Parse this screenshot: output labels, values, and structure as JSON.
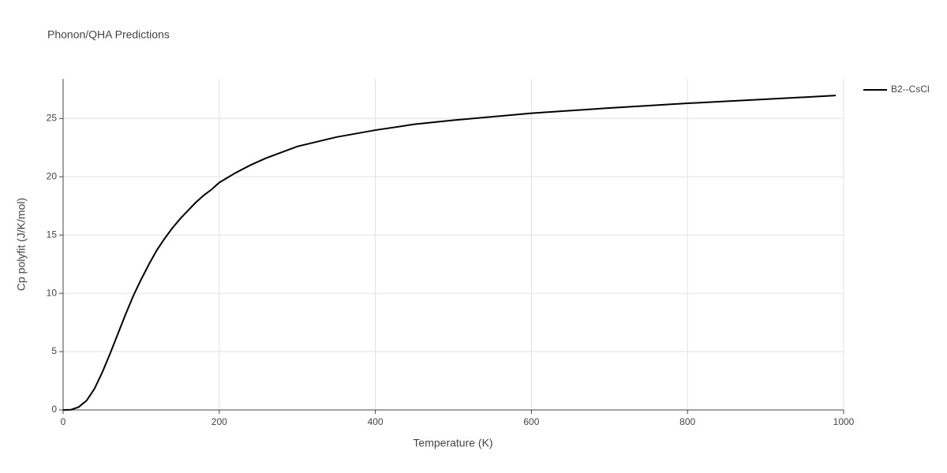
{
  "chart_data": {
    "type": "line",
    "title": "Phonon/QHA Predictions",
    "x_label": "Temperature (K)",
    "y_label": "Cp polyfit (J/K/mol)",
    "x": [
      0,
      10,
      20,
      30,
      40,
      50,
      60,
      70,
      80,
      90,
      100,
      110,
      120,
      130,
      140,
      150,
      160,
      170,
      180,
      190,
      200,
      220,
      240,
      260,
      280,
      300,
      350,
      400,
      450,
      500,
      600,
      700,
      800,
      900,
      990
    ],
    "series": [
      {
        "name": "B2--CsCl",
        "color": "#000000",
        "values": [
          0,
          0.02,
          0.25,
          0.8,
          1.8,
          3.2,
          4.8,
          6.5,
          8.2,
          9.8,
          11.2,
          12.5,
          13.7,
          14.7,
          15.6,
          16.4,
          17.1,
          17.8,
          18.4,
          18.9,
          19.5,
          20.3,
          21.0,
          21.6,
          22.1,
          22.6,
          23.4,
          24.0,
          24.5,
          24.85,
          25.45,
          25.9,
          26.3,
          26.65,
          26.97
        ]
      }
    ],
    "xlim": [
      0,
      1000
    ],
    "xticks": [
      0,
      200,
      400,
      600,
      800,
      1000
    ],
    "ylim": [
      0,
      28.4
    ],
    "yticks": [
      0,
      5,
      10,
      15,
      20,
      25
    ],
    "grid": true,
    "legend_position": "top-right"
  }
}
